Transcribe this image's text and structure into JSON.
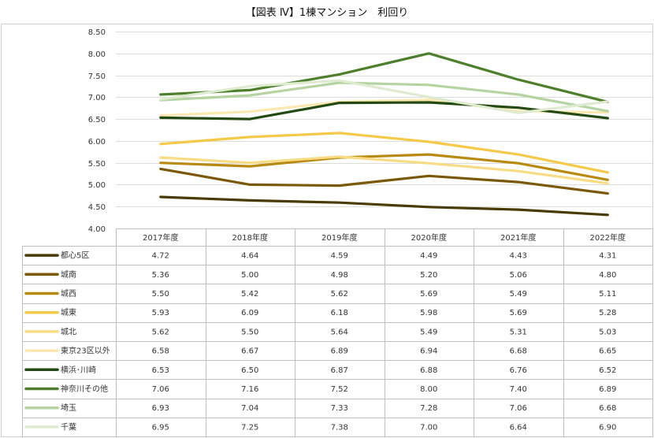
{
  "chart_data": {
    "type": "line",
    "title": "【図表 Ⅳ】1棟マンション　利回り",
    "categories": [
      "2017年度",
      "2018年度",
      "2019年度",
      "2020年度",
      "2021年度",
      "2022年度"
    ],
    "ylim": [
      4.0,
      8.5
    ],
    "yticks": [
      "4.00",
      "4.50",
      "5.00",
      "5.50",
      "6.00",
      "6.50",
      "7.00",
      "7.50",
      "8.00",
      "8.50"
    ],
    "grid": true,
    "legend": "table-left",
    "series": [
      {
        "name": "都心5区",
        "color": "#4a3a05",
        "values": [
          4.72,
          4.64,
          4.59,
          4.49,
          4.43,
          4.31
        ],
        "labels": [
          "4.72",
          "4.64",
          "4.59",
          "4.49",
          "4.43",
          "4.31"
        ]
      },
      {
        "name": "城南",
        "color": "#7a5a0a",
        "values": [
          5.36,
          5.0,
          4.98,
          5.2,
          5.06,
          4.8
        ],
        "labels": [
          "5.36",
          "5.00",
          "4.98",
          "5.20",
          "5.06",
          "4.80"
        ]
      },
      {
        "name": "城西",
        "color": "#b88a12",
        "values": [
          5.5,
          5.42,
          5.62,
          5.69,
          5.49,
          5.11
        ],
        "labels": [
          "5.50",
          "5.42",
          "5.62",
          "5.69",
          "5.49",
          "5.11"
        ]
      },
      {
        "name": "城東",
        "color": "#f5c94a",
        "values": [
          5.93,
          6.09,
          6.18,
          5.98,
          5.69,
          5.28
        ],
        "labels": [
          "5.93",
          "6.09",
          "6.18",
          "5.98",
          "5.69",
          "5.28"
        ]
      },
      {
        "name": "城北",
        "color": "#f8dc85",
        "values": [
          5.62,
          5.5,
          5.64,
          5.49,
          5.31,
          5.03
        ],
        "labels": [
          "5.62",
          "5.50",
          "5.64",
          "5.49",
          "5.31",
          "5.03"
        ]
      },
      {
        "name": "東京23区以外",
        "color": "#fbe8b0",
        "values": [
          6.58,
          6.67,
          6.89,
          6.94,
          6.68,
          6.65
        ],
        "labels": [
          "6.58",
          "6.67",
          "6.89",
          "6.94",
          "6.68",
          "6.65"
        ]
      },
      {
        "name": "横浜･川崎",
        "color": "#244a14",
        "values": [
          6.53,
          6.5,
          6.87,
          6.88,
          6.76,
          6.52
        ],
        "labels": [
          "6.53",
          "6.50",
          "6.87",
          "6.88",
          "6.76",
          "6.52"
        ]
      },
      {
        "name": "神奈川その他",
        "color": "#4e7f2c",
        "values": [
          7.06,
          7.16,
          7.52,
          8.0,
          7.4,
          6.89
        ],
        "labels": [
          "7.06",
          "7.16",
          "7.52",
          "8.00",
          "7.40",
          "6.89"
        ]
      },
      {
        "name": "埼玉",
        "color": "#b5d4a2",
        "values": [
          6.93,
          7.04,
          7.33,
          7.28,
          7.06,
          6.68
        ],
        "labels": [
          "6.93",
          "7.04",
          "7.33",
          "7.28",
          "7.06",
          "6.68"
        ]
      },
      {
        "name": "千葉",
        "color": "#deebd0",
        "values": [
          6.95,
          7.25,
          7.38,
          7.0,
          6.64,
          6.9
        ],
        "labels": [
          "6.95",
          "7.25",
          "7.38",
          "7.00",
          "6.64",
          "6.90"
        ]
      }
    ]
  }
}
